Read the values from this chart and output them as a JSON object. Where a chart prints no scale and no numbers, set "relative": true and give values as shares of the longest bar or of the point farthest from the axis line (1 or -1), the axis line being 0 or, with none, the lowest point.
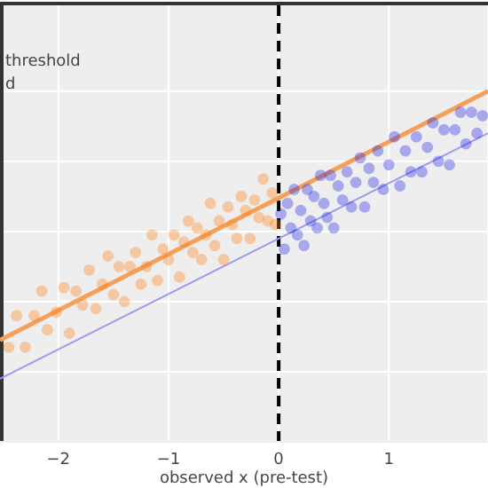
{
  "chart_data": {
    "type": "scatter",
    "xlabel": "observed x (pre-test)",
    "relative": true,
    "xlim": [
      -2.53,
      1.9
    ],
    "xticks": [
      {
        "value": -2,
        "label": "−2"
      },
      {
        "value": -1,
        "label": "−1"
      },
      0,
      1
    ],
    "grid": true,
    "annotations": [
      "threshold",
      "d"
    ],
    "ref_lines": [
      {
        "axis": "x",
        "value": 0,
        "color": "#000000",
        "line_style": "dashed"
      }
    ],
    "series": [
      {
        "type": "scatter",
        "marker": "circle",
        "color": "#ff7f0e",
        "x": [
          -2.45,
          -2.38,
          -2.3,
          -2.22,
          -2.15,
          -2.1,
          -2.02,
          -1.95,
          -1.9,
          -1.84,
          -1.78,
          -1.72,
          -1.66,
          -1.6,
          -1.55,
          -1.5,
          -1.45,
          -1.4,
          -1.35,
          -1.3,
          -1.25,
          -1.2,
          -1.15,
          -1.1,
          -1.05,
          -1,
          -0.95,
          -0.9,
          -0.86,
          -0.82,
          -0.78,
          -0.74,
          -0.7,
          -0.66,
          -0.62,
          -0.58,
          -0.54,
          -0.5,
          -0.46,
          -0.42,
          -0.38,
          -0.34,
          -0.3,
          -0.26,
          -0.22,
          -0.18,
          -0.14,
          -0.1,
          -0.06,
          -0.03
        ],
        "values": [
          0.27,
          0.36,
          0.27,
          0.36,
          0.43,
          0.32,
          0.37,
          0.44,
          0.31,
          0.43,
          0.39,
          0.49,
          0.38,
          0.45,
          0.53,
          0.42,
          0.5,
          0.4,
          0.5,
          0.54,
          0.45,
          0.5,
          0.59,
          0.46,
          0.55,
          0.52,
          0.59,
          0.47,
          0.57,
          0.63,
          0.54,
          0.61,
          0.52,
          0.59,
          0.68,
          0.56,
          0.63,
          0.52,
          0.67,
          0.62,
          0.58,
          0.7,
          0.66,
          0.58,
          0.69,
          0.64,
          0.75,
          0.63,
          0.71,
          0.62
        ]
      },
      {
        "type": "scatter",
        "marker": "circle",
        "color": "#2323e6",
        "x": [
          0.02,
          0.05,
          0.08,
          0.11,
          0.14,
          0.17,
          0.2,
          0.23,
          0.26,
          0.29,
          0.32,
          0.35,
          0.38,
          0.41,
          0.44,
          0.47,
          0.5,
          0.54,
          0.58,
          0.62,
          0.66,
          0.7,
          0.74,
          0.78,
          0.82,
          0.86,
          0.9,
          0.95,
          1,
          1.05,
          1.1,
          1.15,
          1.2,
          1.25,
          1.3,
          1.35,
          1.4,
          1.45,
          1.5,
          1.55,
          1.6,
          1.65,
          1.7,
          1.75,
          1.8,
          1.85
        ],
        "values": [
          0.65,
          0.55,
          0.68,
          0.61,
          0.72,
          0.59,
          0.66,
          0.56,
          0.72,
          0.63,
          0.7,
          0.61,
          0.76,
          0.68,
          0.64,
          0.76,
          0.61,
          0.73,
          0.69,
          0.77,
          0.67,
          0.74,
          0.81,
          0.67,
          0.78,
          0.74,
          0.83,
          0.72,
          0.79,
          0.87,
          0.73,
          0.83,
          0.77,
          0.87,
          0.77,
          0.84,
          0.91,
          0.8,
          0.89,
          0.79,
          0.89,
          0.94,
          0.85,
          0.94,
          0.88,
          0.93
        ]
      },
      {
        "type": "line",
        "color": "#f5a05a",
        "x": [
          -2.53,
          1.9
        ],
        "values": [
          0.29,
          1.0
        ]
      },
      {
        "type": "line",
        "color": "#9b9bf5",
        "x": [
          -2.53,
          1.9
        ],
        "values": [
          0.18,
          0.88
        ]
      }
    ]
  }
}
